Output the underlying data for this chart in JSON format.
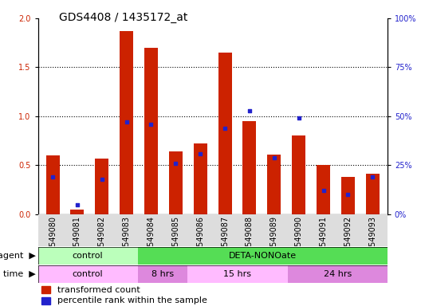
{
  "title": "GDS4408 / 1435172_at",
  "samples": [
    "GSM549080",
    "GSM549081",
    "GSM549082",
    "GSM549083",
    "GSM549084",
    "GSM549085",
    "GSM549086",
    "GSM549087",
    "GSM549088",
    "GSM549089",
    "GSM549090",
    "GSM549091",
    "GSM549092",
    "GSM549093"
  ],
  "red_values": [
    0.6,
    0.05,
    0.57,
    1.87,
    1.7,
    0.64,
    0.72,
    1.65,
    0.95,
    0.61,
    0.8,
    0.5,
    0.38,
    0.41
  ],
  "blue_percentiles": [
    19,
    5,
    18,
    47,
    46,
    26,
    31,
    44,
    53,
    29,
    49,
    12,
    10,
    19
  ],
  "ylim_left": [
    0,
    2
  ],
  "ylim_right": [
    0,
    100
  ],
  "yticks_left": [
    0,
    0.5,
    1.0,
    1.5,
    2.0
  ],
  "yticks_right": [
    0,
    25,
    50,
    75,
    100
  ],
  "bar_color": "#cc2200",
  "dot_color": "#2222cc",
  "agent_groups": [
    {
      "label": "control",
      "start": 0,
      "end": 4,
      "color": "#bbffbb"
    },
    {
      "label": "DETA-NONOate",
      "start": 4,
      "end": 14,
      "color": "#55dd55"
    }
  ],
  "time_groups": [
    {
      "label": "control",
      "start": 0,
      "end": 4,
      "color": "#ffbbff"
    },
    {
      "label": "8 hrs",
      "start": 4,
      "end": 6,
      "color": "#dd88dd"
    },
    {
      "label": "15 hrs",
      "start": 6,
      "end": 10,
      "color": "#ffbbff"
    },
    {
      "label": "24 hrs",
      "start": 10,
      "end": 14,
      "color": "#dd88dd"
    }
  ],
  "legend_red": "transformed count",
  "legend_blue": "percentile rank within the sample",
  "bar_width": 0.55,
  "title_fontsize": 10,
  "tick_fontsize": 7,
  "label_fontsize": 8,
  "row_fontsize": 8
}
